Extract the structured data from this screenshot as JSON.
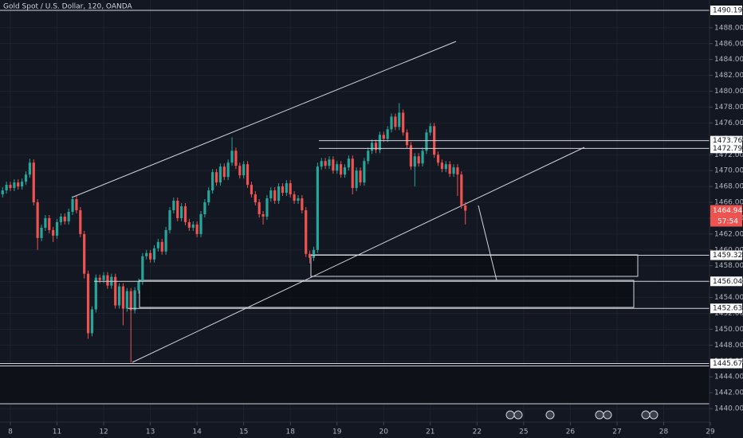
{
  "chart_data": {
    "type": "candlestick",
    "title": "Gold Spot / U.S. Dollar, 120, OANDA",
    "open": [
      1467.0,
      1467.5,
      1468.2,
      1467.8,
      1468.5,
      1468.0,
      1468.6,
      1469.5,
      1471.0,
      1466.0,
      1461.5,
      1462.8,
      1464.0,
      1462.5,
      1461.8,
      1463.5,
      1464.2,
      1463.6,
      1464.8,
      1466.4,
      1465.0,
      1462.0,
      1457.0,
      1449.5,
      1452.5,
      1456.5,
      1456.2,
      1456.8,
      1455.5,
      1456.6,
      1453.0,
      1455.4,
      1452.6,
      1454.8,
      1452.4,
      1454.9,
      1456.0,
      1459.2,
      1459.6,
      1458.8,
      1460.2,
      1461.0,
      1459.8,
      1462.5,
      1465.0,
      1466.2,
      1464.0,
      1465.5,
      1463.5,
      1462.8,
      1463.2,
      1462.0,
      1464.5,
      1466.0,
      1467.5,
      1469.8,
      1468.5,
      1470.5,
      1469.2,
      1471.0,
      1472.5,
      1470.6,
      1469.4,
      1470.8,
      1468.2,
      1467.0,
      1466.0,
      1464.5,
      1464.2,
      1466.5,
      1467.5,
      1466.2,
      1468.0,
      1467.2,
      1468.4,
      1467.0,
      1466.2,
      1466.5,
      1465.0,
      1459.5,
      1459.0,
      1460.0,
      1470.5,
      1471.2,
      1470.6,
      1471.4,
      1470.0,
      1470.8,
      1469.5,
      1470.4,
      1471.5,
      1467.8,
      1470.0,
      1468.5,
      1471.2,
      1472.5,
      1473.5,
      1472.6,
      1474.5,
      1474.0,
      1475.2,
      1476.8,
      1475.5,
      1477.3,
      1474.8,
      1473.2,
      1470.5,
      1471.8,
      1470.9,
      1472.5,
      1474.8,
      1475.6,
      1472.0,
      1471.0,
      1470.2,
      1470.8,
      1469.6,
      1470.4,
      1469.5,
      1465.6
    ],
    "high": [
      1467.9,
      1468.6,
      1468.6,
      1468.9,
      1468.9,
      1469.0,
      1469.9,
      1471.5,
      1471.4,
      1466.4,
      1463.2,
      1464.4,
      1464.4,
      1462.9,
      1463.9,
      1464.6,
      1464.6,
      1465.2,
      1466.8,
      1466.8,
      1465.4,
      1462.4,
      1457.4,
      1452.9,
      1456.9,
      1456.9,
      1457.2,
      1457.2,
      1457.0,
      1457.0,
      1455.8,
      1455.8,
      1455.2,
      1455.2,
      1455.3,
      1456.4,
      1459.6,
      1460.0,
      1460.0,
      1460.6,
      1461.4,
      1461.4,
      1462.9,
      1465.4,
      1466.6,
      1466.6,
      1465.9,
      1465.9,
      1463.9,
      1463.6,
      1463.6,
      1464.9,
      1466.4,
      1467.9,
      1470.2,
      1470.2,
      1470.9,
      1470.9,
      1471.4,
      1474.2,
      1472.9,
      1471.0,
      1471.2,
      1471.2,
      1468.6,
      1467.4,
      1466.4,
      1464.9,
      1466.9,
      1467.9,
      1467.9,
      1468.4,
      1468.4,
      1468.8,
      1468.8,
      1467.4,
      1466.9,
      1466.9,
      1465.4,
      1459.9,
      1460.4,
      1471.0,
      1471.6,
      1471.6,
      1471.8,
      1471.8,
      1471.2,
      1471.2,
      1470.8,
      1471.9,
      1471.9,
      1470.4,
      1470.4,
      1471.6,
      1472.9,
      1473.9,
      1473.9,
      1474.9,
      1474.9,
      1475.6,
      1477.2,
      1477.2,
      1478.5,
      1477.7,
      1475.2,
      1473.6,
      1472.2,
      1472.2,
      1472.9,
      1475.2,
      1476.0,
      1476.0,
      1472.4,
      1471.4,
      1471.2,
      1471.2,
      1470.8,
      1470.8,
      1469.9,
      1466.0
    ],
    "low": [
      1466.6,
      1467.1,
      1467.4,
      1467.4,
      1467.6,
      1467.6,
      1468.2,
      1469.1,
      1465.6,
      1460.0,
      1461.1,
      1462.4,
      1462.1,
      1461.0,
      1461.4,
      1463.1,
      1463.2,
      1463.2,
      1464.4,
      1464.6,
      1461.6,
      1456.4,
      1448.8,
      1449.1,
      1452.1,
      1455.8,
      1455.8,
      1455.1,
      1455.1,
      1452.6,
      1452.6,
      1450.5,
      1452.2,
      1445.8,
      1452.0,
      1454.5,
      1455.6,
      1458.8,
      1458.4,
      1458.4,
      1459.8,
      1459.4,
      1459.4,
      1462.1,
      1464.6,
      1463.6,
      1463.6,
      1463.1,
      1462.4,
      1462.4,
      1461.6,
      1461.6,
      1464.1,
      1465.6,
      1467.1,
      1468.1,
      1468.1,
      1468.8,
      1468.8,
      1470.6,
      1470.2,
      1469.0,
      1469.0,
      1467.8,
      1466.6,
      1465.6,
      1464.1,
      1463.2,
      1463.8,
      1466.1,
      1465.8,
      1465.8,
      1466.8,
      1466.8,
      1466.6,
      1465.8,
      1465.8,
      1464.6,
      1459.1,
      1458.3,
      1458.6,
      1459.6,
      1470.1,
      1470.2,
      1470.2,
      1469.6,
      1469.6,
      1469.1,
      1469.1,
      1470.0,
      1467.0,
      1467.4,
      1468.1,
      1468.1,
      1470.8,
      1472.1,
      1472.2,
      1472.2,
      1473.6,
      1473.6,
      1474.8,
      1475.1,
      1475.1,
      1474.4,
      1472.8,
      1470.1,
      1468.0,
      1470.5,
      1470.5,
      1472.1,
      1474.4,
      1471.6,
      1470.6,
      1469.8,
      1469.8,
      1469.2,
      1469.2,
      1466.8,
      1465.2,
      1463.2
    ],
    "close": [
      1467.5,
      1468.2,
      1467.8,
      1468.5,
      1468.0,
      1468.6,
      1469.5,
      1471.0,
      1466.0,
      1461.5,
      1462.8,
      1464.0,
      1462.5,
      1461.8,
      1463.5,
      1464.2,
      1463.6,
      1464.8,
      1466.4,
      1465.0,
      1462.0,
      1457.0,
      1449.5,
      1452.5,
      1456.5,
      1456.2,
      1456.8,
      1455.5,
      1456.6,
      1453.0,
      1455.4,
      1452.6,
      1454.8,
      1452.4,
      1454.9,
      1456.0,
      1459.2,
      1459.6,
      1458.8,
      1460.2,
      1461.0,
      1459.8,
      1462.5,
      1465.0,
      1466.2,
      1464.0,
      1465.5,
      1463.5,
      1462.8,
      1463.2,
      1462.0,
      1464.5,
      1466.0,
      1467.5,
      1469.8,
      1468.5,
      1470.5,
      1469.2,
      1471.0,
      1472.5,
      1470.6,
      1469.4,
      1470.8,
      1468.2,
      1467.0,
      1466.0,
      1464.5,
      1464.2,
      1466.5,
      1467.5,
      1466.2,
      1468.0,
      1467.2,
      1468.4,
      1467.0,
      1466.2,
      1466.5,
      1465.0,
      1459.5,
      1459.0,
      1460.0,
      1470.5,
      1471.2,
      1470.6,
      1471.4,
      1470.0,
      1470.8,
      1469.5,
      1470.4,
      1471.5,
      1467.8,
      1470.0,
      1468.5,
      1471.2,
      1472.5,
      1473.5,
      1472.6,
      1474.5,
      1474.0,
      1475.2,
      1476.8,
      1475.5,
      1477.3,
      1474.8,
      1473.2,
      1470.5,
      1471.8,
      1470.9,
      1472.5,
      1474.8,
      1475.6,
      1472.0,
      1471.0,
      1470.2,
      1470.8,
      1469.6,
      1470.4,
      1469.5,
      1465.6,
      1464.948
    ],
    "up_color": "#26a69a",
    "down_color": "#ef5350",
    "xlim": [
      -0.664,
      190.4
    ],
    "xticks": [
      {
        "value": 2,
        "label": "8"
      },
      {
        "value": 14,
        "label": "11"
      },
      {
        "value": 26,
        "label": "12"
      },
      {
        "value": 38,
        "label": "13"
      },
      {
        "value": 50,
        "label": "14"
      },
      {
        "value": 62,
        "label": "15"
      },
      {
        "value": 74,
        "label": "18"
      },
      {
        "value": 86,
        "label": "19"
      },
      {
        "value": 98,
        "label": "20"
      },
      {
        "value": 110,
        "label": "21"
      },
      {
        "value": 122,
        "label": "22"
      },
      {
        "value": 134,
        "label": "25"
      },
      {
        "value": 146,
        "label": "26"
      },
      {
        "value": 158,
        "label": "27"
      },
      {
        "value": 170,
        "label": "28"
      },
      {
        "value": 182,
        "label": "29"
      }
    ],
    "ylim": [
      1438.3,
      1491.5
    ],
    "yticks": [
      {
        "value": 1440,
        "label": "1440.000"
      },
      {
        "value": 1442,
        "label": "1442.000"
      },
      {
        "value": 1444,
        "label": "1444.000"
      },
      {
        "value": 1446,
        "label": "1446.000"
      },
      {
        "value": 1448,
        "label": "1448.000"
      },
      {
        "value": 1450,
        "label": "1450.000"
      },
      {
        "value": 1452,
        "label": "1452.000"
      },
      {
        "value": 1454,
        "label": "1454.000"
      },
      {
        "value": 1456,
        "label": "1456.000"
      },
      {
        "value": 1458,
        "label": "1458.000"
      },
      {
        "value": 1460,
        "label": "1460.000"
      },
      {
        "value": 1462,
        "label": "1462.000"
      },
      {
        "value": 1464,
        "label": "1464.000"
      },
      {
        "value": 1466,
        "label": "1466.000"
      },
      {
        "value": 1468,
        "label": "1468.000"
      },
      {
        "value": 1470,
        "label": "1470.000"
      },
      {
        "value": 1472,
        "label": "1472.000"
      },
      {
        "value": 1474,
        "label": "1474.000"
      },
      {
        "value": 1476,
        "label": "1476.000"
      },
      {
        "value": 1478,
        "label": "1478.000"
      },
      {
        "value": 1480,
        "label": "1480.000"
      },
      {
        "value": 1482,
        "label": "1482.000"
      },
      {
        "value": 1484,
        "label": "1484.000"
      },
      {
        "value": 1486,
        "label": "1486.000"
      },
      {
        "value": 1488,
        "label": "1488.000"
      }
    ],
    "grid": true,
    "levels": [
      1490.194,
      1473.767,
      1472.797,
      1459.327,
      {
        "value": 1456.04,
        "label": "1456.040"
      },
      1452.631,
      1445.679
    ],
    "countdown": "57:54"
  }
}
